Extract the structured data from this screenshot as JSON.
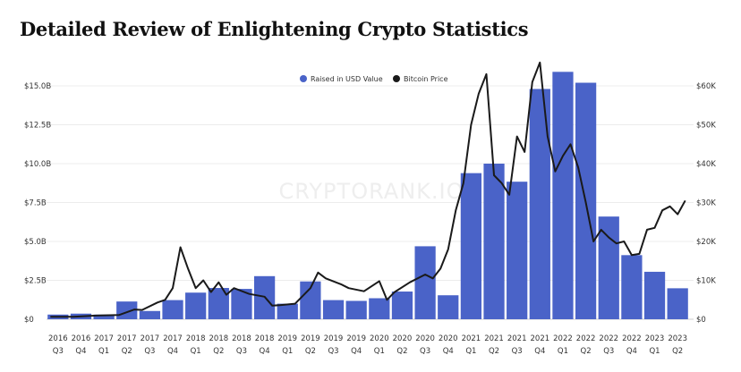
{
  "chart_data": {
    "type": "bar+line",
    "title": "Detailed Review of Enlightening Crypto Statistics",
    "watermark": "CRYPTORANK.IO",
    "legend_position": "top-center",
    "grid": true,
    "categories": [
      [
        "2016",
        "Q3"
      ],
      [
        "2016",
        "Q4"
      ],
      [
        "2017",
        "Q1"
      ],
      [
        "2017",
        "Q2"
      ],
      [
        "2017",
        "Q3"
      ],
      [
        "2017",
        "Q4"
      ],
      [
        "2018",
        "Q1"
      ],
      [
        "2018",
        "Q2"
      ],
      [
        "2018",
        "Q3"
      ],
      [
        "2018",
        "Q4"
      ],
      [
        "2019",
        "Q1"
      ],
      [
        "2019",
        "Q2"
      ],
      [
        "2019",
        "Q3"
      ],
      [
        "2019",
        "Q4"
      ],
      [
        "2020",
        "Q1"
      ],
      [
        "2020",
        "Q2"
      ],
      [
        "2020",
        "Q3"
      ],
      [
        "2020",
        "Q4"
      ],
      [
        "2021",
        "Q1"
      ],
      [
        "2021",
        "Q2"
      ],
      [
        "2021",
        "Q3"
      ],
      [
        "2021",
        "Q4"
      ],
      [
        "2022",
        "Q1"
      ],
      [
        "2022",
        "Q2"
      ],
      [
        "2022",
        "Q3"
      ],
      [
        "2022",
        "Q4"
      ],
      [
        "2023",
        "Q1"
      ],
      [
        "2023",
        "Q2"
      ]
    ],
    "left_axis": {
      "ticks": [
        "$0",
        "$2.5B",
        "$5.0B",
        "$7.5B",
        "$10.0B",
        "$12.5B",
        "$15.0B"
      ],
      "ylim_billions": [
        0,
        15
      ]
    },
    "right_axis": {
      "ticks": [
        "$0",
        "$10K",
        "$20K",
        "$30K",
        "$40K",
        "$50K",
        "$60K"
      ],
      "ylim": [
        0,
        60000
      ]
    },
    "series": [
      {
        "name": "Raised in USD Value",
        "type": "bar",
        "axis": "left",
        "color": "#4a63c8",
        "unit": "billion USD",
        "values": [
          0.3,
          0.36,
          0.3,
          1.14,
          0.53,
          1.23,
          1.71,
          2.01,
          1.95,
          2.77,
          1.0,
          2.43,
          1.23,
          1.18,
          1.35,
          1.78,
          4.69,
          1.54,
          9.39,
          10.0,
          8.84,
          14.8,
          15.9,
          15.2,
          6.6,
          4.12,
          3.05,
          1.99
        ]
      },
      {
        "name": "Bitcoin Price",
        "type": "line",
        "axis": "right",
        "color": "#1a1a1a",
        "points": [
          [
            "2016-07",
            650
          ],
          [
            "2016-10",
            620
          ],
          [
            "2017-01",
            950
          ],
          [
            "2017-04",
            1100
          ],
          [
            "2017-06",
            2500
          ],
          [
            "2017-07",
            2400
          ],
          [
            "2017-09",
            4300
          ],
          [
            "2017-10",
            5000
          ],
          [
            "2017-11",
            8000
          ],
          [
            "2017-12",
            18500
          ],
          [
            "2018-01",
            13000
          ],
          [
            "2018-02",
            8000
          ],
          [
            "2018-03",
            10000
          ],
          [
            "2018-04",
            7000
          ],
          [
            "2018-05",
            9500
          ],
          [
            "2018-06",
            6300
          ],
          [
            "2018-07",
            8000
          ],
          [
            "2018-09",
            6500
          ],
          [
            "2018-11",
            5800
          ],
          [
            "2018-12",
            3500
          ],
          [
            "2019-01",
            3600
          ],
          [
            "2019-03",
            4000
          ],
          [
            "2019-05",
            8000
          ],
          [
            "2019-06",
            12000
          ],
          [
            "2019-07",
            10500
          ],
          [
            "2019-09",
            9000
          ],
          [
            "2019-10",
            8000
          ],
          [
            "2019-12",
            7200
          ],
          [
            "2020-02",
            9800
          ],
          [
            "2020-03",
            5000
          ],
          [
            "2020-04",
            7000
          ],
          [
            "2020-06",
            9500
          ],
          [
            "2020-08",
            11500
          ],
          [
            "2020-09",
            10500
          ],
          [
            "2020-10",
            13000
          ],
          [
            "2020-11",
            18000
          ],
          [
            "2020-12",
            28000
          ],
          [
            "2021-01",
            35000
          ],
          [
            "2021-02",
            50000
          ],
          [
            "2021-03",
            58000
          ],
          [
            "2021-04",
            63000
          ],
          [
            "2021-05",
            37000
          ],
          [
            "2021-06",
            35000
          ],
          [
            "2021-07",
            32000
          ],
          [
            "2021-08",
            47000
          ],
          [
            "2021-09",
            43000
          ],
          [
            "2021-10",
            61000
          ],
          [
            "2021-11",
            66000
          ],
          [
            "2021-12",
            47000
          ],
          [
            "2022-01",
            38000
          ],
          [
            "2022-02",
            42000
          ],
          [
            "2022-03",
            45000
          ],
          [
            "2022-04",
            39000
          ],
          [
            "2022-05",
            30000
          ],
          [
            "2022-06",
            20000
          ],
          [
            "2022-07",
            23000
          ],
          [
            "2022-08",
            21000
          ],
          [
            "2022-09",
            19500
          ],
          [
            "2022-10",
            20000
          ],
          [
            "2022-11",
            16500
          ],
          [
            "2022-12",
            16800
          ],
          [
            "2023-01",
            23000
          ],
          [
            "2023-02",
            23500
          ],
          [
            "2023-03",
            28000
          ],
          [
            "2023-04",
            29000
          ],
          [
            "2023-05",
            27000
          ],
          [
            "2023-06",
            30500
          ]
        ]
      }
    ]
  }
}
